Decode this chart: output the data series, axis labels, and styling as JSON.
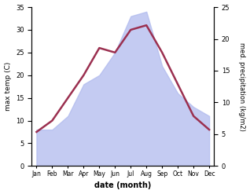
{
  "months": [
    "Jan",
    "Feb",
    "Mar",
    "Apr",
    "May",
    "Jun",
    "Jul",
    "Aug",
    "Sep",
    "Oct",
    "Nov",
    "Dec"
  ],
  "precipitation_left_scale": [
    8,
    8,
    11,
    18,
    20,
    25,
    33,
    34,
    22,
    16,
    13,
    11
  ],
  "max_temp": [
    7.5,
    10,
    15,
    20,
    26,
    25,
    30,
    31,
    25,
    18,
    11,
    8
  ],
  "precip_color": "#b0baee",
  "precip_alpha": 0.75,
  "temp_color": "#9b3050",
  "left_ylabel": "max temp (C)",
  "right_ylabel": "med. precipitation (kg/m2)",
  "xlabel": "date (month)",
  "left_ylim": [
    0,
    35
  ],
  "right_ylim": [
    0,
    25
  ],
  "left_yticks": [
    0,
    5,
    10,
    15,
    20,
    25,
    30,
    35
  ],
  "right_yticks": [
    0,
    5,
    10,
    15,
    20,
    25
  ],
  "background_color": "#ffffff",
  "temp_linewidth": 1.8
}
